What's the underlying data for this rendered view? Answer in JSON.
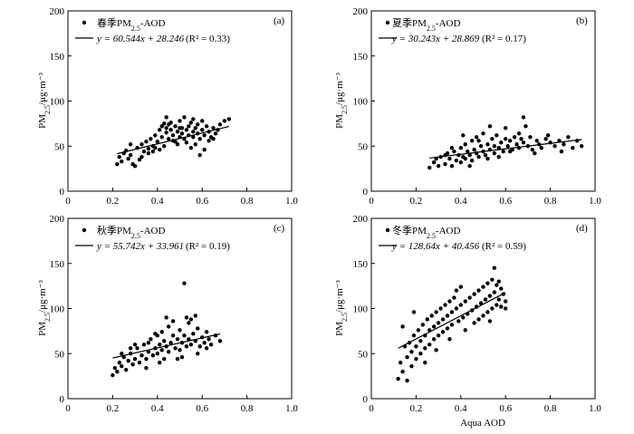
{
  "chart_data": [
    {
      "type": "scatter",
      "tag": "(a)",
      "legend_series": "春季PM",
      "legend_sub": "2.5",
      "legend_suffix": "-AOD",
      "fit_text": "y = 60.544x + 28.246",
      "r2_text": "(R² = 0.33)",
      "ylabel_main": "PM",
      "ylabel_sub": "2.5",
      "ylabel_unit": "/μg·m⁻³",
      "xlabel": "",
      "xlim": [
        0,
        1.0
      ],
      "ylim": [
        0,
        200
      ],
      "x_ticks": [
        "0",
        "0.2",
        "0.4",
        "0.6",
        "0.8",
        "1.0"
      ],
      "y_ticks": [
        "0",
        "50",
        "100",
        "150",
        "200"
      ],
      "fit": {
        "slope": 60.544,
        "intercept": 28.246,
        "x_range": [
          0.22,
          0.72
        ]
      },
      "points": [
        [
          0.22,
          30
        ],
        [
          0.23,
          38
        ],
        [
          0.24,
          33
        ],
        [
          0.25,
          42
        ],
        [
          0.26,
          45
        ],
        [
          0.27,
          36
        ],
        [
          0.28,
          40
        ],
        [
          0.29,
          30
        ],
        [
          0.3,
          28
        ],
        [
          0.31,
          48
        ],
        [
          0.32,
          35
        ],
        [
          0.33,
          52
        ],
        [
          0.34,
          44
        ],
        [
          0.35,
          55
        ],
        [
          0.36,
          47
        ],
        [
          0.37,
          58
        ],
        [
          0.38,
          50
        ],
        [
          0.39,
          62
        ],
        [
          0.4,
          55
        ],
        [
          0.41,
          68
        ],
        [
          0.42,
          72
        ],
        [
          0.42,
          60
        ],
        [
          0.43,
          75
        ],
        [
          0.44,
          70
        ],
        [
          0.44,
          65
        ],
        [
          0.45,
          74
        ],
        [
          0.45,
          58
        ],
        [
          0.46,
          68
        ],
        [
          0.46,
          76
        ],
        [
          0.47,
          62
        ],
        [
          0.48,
          72
        ],
        [
          0.48,
          55
        ],
        [
          0.49,
          66
        ],
        [
          0.5,
          78
        ],
        [
          0.5,
          60
        ],
        [
          0.51,
          70
        ],
        [
          0.51,
          64
        ],
        [
          0.52,
          82
        ],
        [
          0.52,
          58
        ],
        [
          0.53,
          68
        ],
        [
          0.54,
          72
        ],
        [
          0.54,
          62
        ],
        [
          0.55,
          76
        ],
        [
          0.56,
          66
        ],
        [
          0.56,
          60
        ],
        [
          0.57,
          70
        ],
        [
          0.58,
          64
        ],
        [
          0.58,
          74
        ],
        [
          0.59,
          58
        ],
        [
          0.6,
          68
        ],
        [
          0.61,
          62
        ],
        [
          0.62,
          72
        ],
        [
          0.63,
          66
        ],
        [
          0.64,
          60
        ],
        [
          0.65,
          70
        ],
        [
          0.66,
          64
        ],
        [
          0.67,
          68
        ],
        [
          0.68,
          74
        ],
        [
          0.7,
          78
        ],
        [
          0.72,
          80
        ],
        [
          0.36,
          42
        ],
        [
          0.39,
          48
        ],
        [
          0.43,
          50
        ],
        [
          0.47,
          56
        ],
        [
          0.53,
          54
        ],
        [
          0.57,
          52
        ],
        [
          0.61,
          46
        ],
        [
          0.65,
          58
        ],
        [
          0.28,
          52
        ],
        [
          0.33,
          38
        ],
        [
          0.41,
          46
        ],
        [
          0.49,
          52
        ],
        [
          0.55,
          48
        ],
        [
          0.59,
          40
        ],
        [
          0.63,
          56
        ],
        [
          0.44,
          82
        ],
        [
          0.5,
          70
        ],
        [
          0.56,
          80
        ],
        [
          0.6,
          78
        ],
        [
          0.38,
          44
        ]
      ]
    },
    {
      "type": "scatter",
      "tag": "(b)",
      "legend_series": "夏季PM",
      "legend_sub": "2.5",
      "legend_suffix": "-AOD",
      "fit_text": "y = 30.243x + 28.869",
      "r2_text": "(R² = 0.17)",
      "ylabel_main": "PM",
      "ylabel_sub": "2.5",
      "ylabel_unit": "/μg·m⁻³",
      "xlabel": "",
      "xlim": [
        0,
        1.0
      ],
      "ylim": [
        0,
        200
      ],
      "x_ticks": [
        "0",
        "0.2",
        "0.4",
        "0.6",
        "0.8",
        "1.0"
      ],
      "y_ticks": [
        "0",
        "50",
        "100",
        "150",
        "200"
      ],
      "fit": {
        "slope": 30.243,
        "intercept": 28.869,
        "x_range": [
          0.26,
          0.94
        ]
      },
      "points": [
        [
          0.26,
          26
        ],
        [
          0.28,
          32
        ],
        [
          0.3,
          28
        ],
        [
          0.31,
          38
        ],
        [
          0.33,
          30
        ],
        [
          0.34,
          42
        ],
        [
          0.35,
          36
        ],
        [
          0.36,
          28
        ],
        [
          0.37,
          44
        ],
        [
          0.38,
          34
        ],
        [
          0.39,
          40
        ],
        [
          0.4,
          48
        ],
        [
          0.4,
          32
        ],
        [
          0.41,
          38
        ],
        [
          0.42,
          52
        ],
        [
          0.42,
          36
        ],
        [
          0.43,
          44
        ],
        [
          0.44,
          40
        ],
        [
          0.45,
          56
        ],
        [
          0.45,
          34
        ],
        [
          0.46,
          46
        ],
        [
          0.47,
          42
        ],
        [
          0.47,
          60
        ],
        [
          0.48,
          38
        ],
        [
          0.49,
          50
        ],
        [
          0.5,
          44
        ],
        [
          0.5,
          64
        ],
        [
          0.51,
          40
        ],
        [
          0.52,
          52
        ],
        [
          0.53,
          46
        ],
        [
          0.54,
          58
        ],
        [
          0.55,
          42
        ],
        [
          0.55,
          50
        ],
        [
          0.56,
          62
        ],
        [
          0.57,
          48
        ],
        [
          0.58,
          54
        ],
        [
          0.59,
          44
        ],
        [
          0.6,
          58
        ],
        [
          0.61,
          50
        ],
        [
          0.62,
          56
        ],
        [
          0.63,
          46
        ],
        [
          0.64,
          60
        ],
        [
          0.65,
          52
        ],
        [
          0.66,
          48
        ],
        [
          0.67,
          58
        ],
        [
          0.68,
          82
        ],
        [
          0.68,
          54
        ],
        [
          0.7,
          50
        ],
        [
          0.71,
          60
        ],
        [
          0.72,
          46
        ],
        [
          0.74,
          56
        ],
        [
          0.75,
          52
        ],
        [
          0.76,
          48
        ],
        [
          0.78,
          58
        ],
        [
          0.8,
          54
        ],
        [
          0.82,
          50
        ],
        [
          0.84,
          56
        ],
        [
          0.86,
          52
        ],
        [
          0.88,
          60
        ],
        [
          0.9,
          48
        ],
        [
          0.92,
          56
        ],
        [
          0.94,
          50
        ],
        [
          0.29,
          36
        ],
        [
          0.33,
          40
        ],
        [
          0.36,
          48
        ],
        [
          0.44,
          28
        ],
        [
          0.48,
          56
        ],
        [
          0.52,
          36
        ],
        [
          0.57,
          38
        ],
        [
          0.62,
          44
        ],
        [
          0.66,
          64
        ],
        [
          0.73,
          42
        ],
        [
          0.79,
          62
        ],
        [
          0.85,
          44
        ],
        [
          0.53,
          72
        ],
        [
          0.41,
          62
        ],
        [
          0.6,
          70
        ],
        [
          0.69,
          72
        ]
      ]
    },
    {
      "type": "scatter",
      "tag": "(c)",
      "legend_series": "秋季PM",
      "legend_sub": "2.5",
      "legend_suffix": "-AOD",
      "fit_text": "y = 55.742x + 33.961",
      "r2_text": "(R² = 0.19)",
      "ylabel_main": "PM",
      "ylabel_sub": "2.5",
      "ylabel_unit": "/μg·m⁻³",
      "xlabel": "",
      "xlim": [
        0,
        1.0
      ],
      "ylim": [
        0,
        200
      ],
      "x_ticks": [
        "0",
        "0.2",
        "0.4",
        "0.6",
        "0.8",
        "1.0"
      ],
      "y_ticks": [
        "0",
        "50",
        "100",
        "150",
        "200"
      ],
      "fit": {
        "slope": 55.742,
        "intercept": 33.961,
        "x_range": [
          0.2,
          0.68
        ]
      },
      "points": [
        [
          0.2,
          26
        ],
        [
          0.21,
          34
        ],
        [
          0.22,
          30
        ],
        [
          0.23,
          40
        ],
        [
          0.24,
          36
        ],
        [
          0.25,
          46
        ],
        [
          0.26,
          32
        ],
        [
          0.27,
          42
        ],
        [
          0.28,
          50
        ],
        [
          0.29,
          38
        ],
        [
          0.3,
          44
        ],
        [
          0.31,
          56
        ],
        [
          0.32,
          40
        ],
        [
          0.33,
          48
        ],
        [
          0.34,
          60
        ],
        [
          0.35,
          44
        ],
        [
          0.36,
          52
        ],
        [
          0.37,
          66
        ],
        [
          0.38,
          48
        ],
        [
          0.39,
          56
        ],
        [
          0.4,
          70
        ],
        [
          0.4,
          50
        ],
        [
          0.41,
          60
        ],
        [
          0.42,
          74
        ],
        [
          0.42,
          54
        ],
        [
          0.43,
          64
        ],
        [
          0.44,
          58
        ],
        [
          0.45,
          80
        ],
        [
          0.45,
          52
        ],
        [
          0.46,
          62
        ],
        [
          0.47,
          70
        ],
        [
          0.48,
          56
        ],
        [
          0.49,
          66
        ],
        [
          0.5,
          76
        ],
        [
          0.5,
          54
        ],
        [
          0.51,
          62
        ],
        [
          0.52,
          128
        ],
        [
          0.52,
          70
        ],
        [
          0.53,
          58
        ],
        [
          0.54,
          66
        ],
        [
          0.55,
          88
        ],
        [
          0.55,
          60
        ],
        [
          0.56,
          72
        ],
        [
          0.57,
          64
        ],
        [
          0.58,
          78
        ],
        [
          0.59,
          58
        ],
        [
          0.6,
          68
        ],
        [
          0.61,
          62
        ],
        [
          0.62,
          74
        ],
        [
          0.63,
          66
        ],
        [
          0.64,
          60
        ],
        [
          0.66,
          70
        ],
        [
          0.68,
          64
        ],
        [
          0.24,
          50
        ],
        [
          0.3,
          60
        ],
        [
          0.35,
          34
        ],
        [
          0.39,
          72
        ],
        [
          0.43,
          44
        ],
        [
          0.47,
          86
        ],
        [
          0.51,
          46
        ],
        [
          0.54,
          84
        ],
        [
          0.58,
          50
        ],
        [
          0.62,
          56
        ],
        [
          0.44,
          90
        ],
        [
          0.57,
          92
        ],
        [
          0.36,
          62
        ],
        [
          0.41,
          40
        ],
        [
          0.49,
          44
        ],
        [
          0.53,
          90
        ],
        [
          0.28,
          56
        ]
      ]
    },
    {
      "type": "scatter",
      "tag": "(d)",
      "legend_series": "冬季PM",
      "legend_sub": "2.5",
      "legend_suffix": "-AOD",
      "fit_text": "y = 128.64x + 40.456",
      "r2_text": "(R² = 0.59)",
      "ylabel_main": "PM",
      "ylabel_sub": "2.5",
      "ylabel_unit": "/μg·m⁻³",
      "xlabel": "Aqua AOD",
      "xlim": [
        0,
        1.0
      ],
      "ylim": [
        0,
        200
      ],
      "x_ticks": [
        "0",
        "0.2",
        "0.4",
        "0.6",
        "0.8",
        "1.0"
      ],
      "y_ticks": [
        "0",
        "50",
        "100",
        "150",
        "200"
      ],
      "fit": {
        "slope": 128.64,
        "intercept": 40.456,
        "x_range": [
          0.12,
          0.6
        ]
      },
      "points": [
        [
          0.12,
          22
        ],
        [
          0.13,
          40
        ],
        [
          0.14,
          30
        ],
        [
          0.15,
          58
        ],
        [
          0.16,
          46
        ],
        [
          0.16,
          20
        ],
        [
          0.17,
          62
        ],
        [
          0.18,
          52
        ],
        [
          0.18,
          36
        ],
        [
          0.19,
          70
        ],
        [
          0.2,
          58
        ],
        [
          0.2,
          44
        ],
        [
          0.21,
          76
        ],
        [
          0.22,
          64
        ],
        [
          0.22,
          50
        ],
        [
          0.23,
          82
        ],
        [
          0.24,
          70
        ],
        [
          0.24,
          56
        ],
        [
          0.25,
          88
        ],
        [
          0.26,
          76
        ],
        [
          0.26,
          60
        ],
        [
          0.27,
          92
        ],
        [
          0.28,
          80
        ],
        [
          0.28,
          66
        ],
        [
          0.29,
          96
        ],
        [
          0.3,
          84
        ],
        [
          0.3,
          70
        ],
        [
          0.31,
          100
        ],
        [
          0.32,
          88
        ],
        [
          0.32,
          74
        ],
        [
          0.33,
          104
        ],
        [
          0.34,
          92
        ],
        [
          0.34,
          78
        ],
        [
          0.35,
          108
        ],
        [
          0.36,
          96
        ],
        [
          0.36,
          82
        ],
        [
          0.37,
          112
        ],
        [
          0.38,
          100
        ],
        [
          0.38,
          120
        ],
        [
          0.39,
          86
        ],
        [
          0.4,
          104
        ],
        [
          0.4,
          124
        ],
        [
          0.41,
          90
        ],
        [
          0.42,
          108
        ],
        [
          0.43,
          94
        ],
        [
          0.44,
          112
        ],
        [
          0.45,
          98
        ],
        [
          0.46,
          116
        ],
        [
          0.47,
          102
        ],
        [
          0.48,
          120
        ],
        [
          0.48,
          88
        ],
        [
          0.49,
          106
        ],
        [
          0.5,
          124
        ],
        [
          0.5,
          92
        ],
        [
          0.51,
          110
        ],
        [
          0.52,
          128
        ],
        [
          0.52,
          96
        ],
        [
          0.53,
          114
        ],
        [
          0.54,
          132
        ],
        [
          0.54,
          100
        ],
        [
          0.55,
          145
        ],
        [
          0.55,
          118
        ],
        [
          0.56,
          104
        ],
        [
          0.56,
          126
        ],
        [
          0.57,
          110
        ],
        [
          0.58,
          122
        ],
        [
          0.58,
          102
        ],
        [
          0.59,
          116
        ],
        [
          0.6,
          108
        ],
        [
          0.14,
          80
        ],
        [
          0.19,
          96
        ],
        [
          0.24,
          40
        ],
        [
          0.29,
          54
        ],
        [
          0.35,
          66
        ],
        [
          0.42,
          76
        ],
        [
          0.46,
          84
        ],
        [
          0.53,
          86
        ],
        [
          0.57,
          130
        ],
        [
          0.6,
          100
        ]
      ]
    }
  ]
}
